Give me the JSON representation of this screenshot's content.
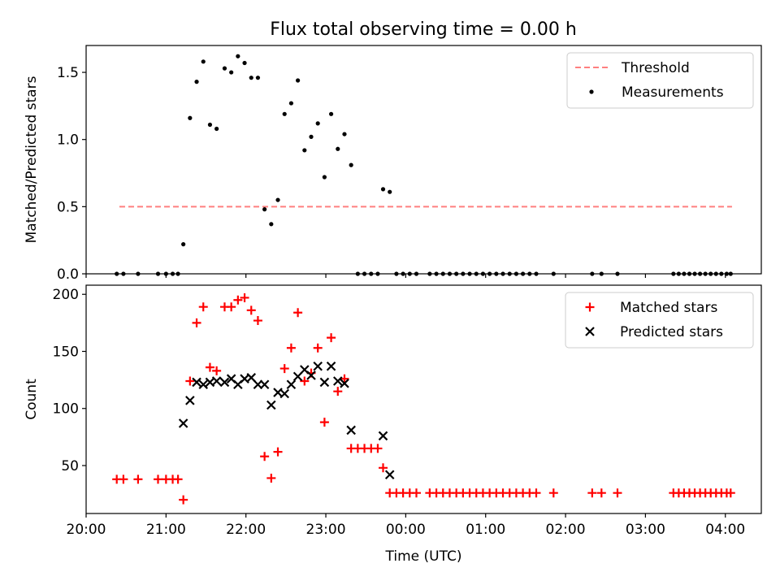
{
  "figure": {
    "title": "Flux total observing time = 0.00 h"
  },
  "chart_data": [
    {
      "type": "scatter",
      "title": "Flux total observing time = 0.00 h",
      "xlabel": "",
      "ylabel": "Matched/Predicted stars",
      "xlim": [
        "20:00",
        "04:27"
      ],
      "ylim": [
        0,
        1.7
      ],
      "yticks": [
        0.0,
        0.5,
        1.0,
        1.5
      ],
      "ytick_labels": [
        "0.0",
        "0.5",
        "1.0",
        "1.5"
      ],
      "grid": false,
      "legend_position": "top-right",
      "threshold": {
        "name": "Threshold",
        "value": 0.5,
        "x_range": [
          "20:25",
          "04:05"
        ],
        "color": "#ff7f7f",
        "style": "dashed"
      },
      "series": [
        {
          "name": "Measurements",
          "color": "#000000",
          "marker": "dot",
          "points": [
            [
              "20:23",
              0
            ],
            [
              "20:28",
              0
            ],
            [
              "20:39",
              0
            ],
            [
              "20:54",
              0
            ],
            [
              "21:00",
              0
            ],
            [
              "21:05",
              0
            ],
            [
              "21:09",
              0
            ],
            [
              "21:13",
              0.22
            ],
            [
              "21:18",
              1.16
            ],
            [
              "21:23",
              1.43
            ],
            [
              "21:28",
              1.58
            ],
            [
              "21:33",
              1.11
            ],
            [
              "21:38",
              1.08
            ],
            [
              "21:44",
              1.53
            ],
            [
              "21:49",
              1.5
            ],
            [
              "21:54",
              1.62
            ],
            [
              "21:59",
              1.57
            ],
            [
              "22:04",
              1.46
            ],
            [
              "22:09",
              1.46
            ],
            [
              "22:14",
              0.48
            ],
            [
              "22:19",
              0.37
            ],
            [
              "22:24",
              0.55
            ],
            [
              "22:29",
              1.19
            ],
            [
              "22:34",
              1.27
            ],
            [
              "22:39",
              1.44
            ],
            [
              "22:44",
              0.92
            ],
            [
              "22:49",
              1.02
            ],
            [
              "22:54",
              1.12
            ],
            [
              "22:59",
              0.72
            ],
            [
              "23:04",
              1.19
            ],
            [
              "23:09",
              0.93
            ],
            [
              "23:14",
              1.04
            ],
            [
              "23:19",
              0.81
            ],
            [
              "23:24",
              0
            ],
            [
              "23:29",
              0
            ],
            [
              "23:34",
              0
            ],
            [
              "23:39",
              0
            ],
            [
              "23:43",
              0.63
            ],
            [
              "23:48",
              0.61
            ],
            [
              "23:53",
              0
            ],
            [
              "23:58",
              0
            ],
            [
              "00:03",
              0
            ],
            [
              "00:08",
              0
            ],
            [
              "00:18",
              0
            ],
            [
              "00:23",
              0
            ],
            [
              "00:28",
              0
            ],
            [
              "00:33",
              0
            ],
            [
              "00:38",
              0
            ],
            [
              "00:43",
              0
            ],
            [
              "00:48",
              0
            ],
            [
              "00:53",
              0
            ],
            [
              "00:58",
              0
            ],
            [
              "01:03",
              0
            ],
            [
              "01:08",
              0
            ],
            [
              "01:13",
              0
            ],
            [
              "01:18",
              0
            ],
            [
              "01:23",
              0
            ],
            [
              "01:28",
              0
            ],
            [
              "01:33",
              0
            ],
            [
              "01:38",
              0
            ],
            [
              "01:51",
              0
            ],
            [
              "02:20",
              0
            ],
            [
              "02:27",
              0
            ],
            [
              "02:39",
              0
            ],
            [
              "03:21",
              0
            ],
            [
              "03:25",
              0
            ],
            [
              "03:29",
              0
            ],
            [
              "03:33",
              0
            ],
            [
              "03:37",
              0
            ],
            [
              "03:41",
              0
            ],
            [
              "03:45",
              0
            ],
            [
              "03:49",
              0
            ],
            [
              "03:53",
              0
            ],
            [
              "03:57",
              0
            ],
            [
              "04:01",
              0
            ],
            [
              "04:04",
              0
            ]
          ]
        }
      ]
    },
    {
      "type": "scatter",
      "title": "",
      "xlabel": "Time (UTC)",
      "ylabel": "Count",
      "xlim": [
        "20:00",
        "04:27"
      ],
      "ylim": [
        8,
        208
      ],
      "yticks": [
        50,
        100,
        150,
        200
      ],
      "ytick_labels": [
        "50",
        "100",
        "150",
        "200"
      ],
      "xticks": [
        "20:00",
        "21:00",
        "22:00",
        "23:00",
        "00:00",
        "01:00",
        "02:00",
        "03:00",
        "04:00"
      ],
      "xtick_labels": [
        "20:00",
        "21:00",
        "22:00",
        "23:00",
        "00:00",
        "01:00",
        "02:00",
        "03:00",
        "04:00"
      ],
      "grid": false,
      "legend_position": "top-right",
      "series": [
        {
          "name": "Matched stars",
          "color": "#ff0000",
          "marker": "plus",
          "points": [
            [
              "20:23",
              38
            ],
            [
              "20:28",
              38
            ],
            [
              "20:39",
              38
            ],
            [
              "20:54",
              38
            ],
            [
              "21:00",
              38
            ],
            [
              "21:05",
              38
            ],
            [
              "21:09",
              38
            ],
            [
              "21:13",
              20
            ],
            [
              "21:18",
              124
            ],
            [
              "21:23",
              175
            ],
            [
              "21:28",
              189
            ],
            [
              "21:33",
              136
            ],
            [
              "21:38",
              133
            ],
            [
              "21:44",
              189
            ],
            [
              "21:49",
              189
            ],
            [
              "21:54",
              195
            ],
            [
              "21:59",
              197
            ],
            [
              "22:04",
              186
            ],
            [
              "22:09",
              177
            ],
            [
              "22:14",
              58
            ],
            [
              "22:19",
              39
            ],
            [
              "22:24",
              62
            ],
            [
              "22:29",
              135
            ],
            [
              "22:34",
              153
            ],
            [
              "22:39",
              184
            ],
            [
              "22:44",
              124
            ],
            [
              "22:49",
              131
            ],
            [
              "22:54",
              153
            ],
            [
              "22:59",
              88
            ],
            [
              "23:04",
              162
            ],
            [
              "23:09",
              115
            ],
            [
              "23:14",
              126
            ],
            [
              "23:19",
              65
            ],
            [
              "23:24",
              65
            ],
            [
              "23:29",
              65
            ],
            [
              "23:34",
              65
            ],
            [
              "23:39",
              65
            ],
            [
              "23:43",
              48
            ],
            [
              "23:48",
              26
            ],
            [
              "23:53",
              26
            ],
            [
              "23:58",
              26
            ],
            [
              "00:03",
              26
            ],
            [
              "00:08",
              26
            ],
            [
              "00:18",
              26
            ],
            [
              "00:23",
              26
            ],
            [
              "00:28",
              26
            ],
            [
              "00:33",
              26
            ],
            [
              "00:38",
              26
            ],
            [
              "00:43",
              26
            ],
            [
              "00:48",
              26
            ],
            [
              "00:53",
              26
            ],
            [
              "00:58",
              26
            ],
            [
              "01:03",
              26
            ],
            [
              "01:08",
              26
            ],
            [
              "01:13",
              26
            ],
            [
              "01:18",
              26
            ],
            [
              "01:23",
              26
            ],
            [
              "01:28",
              26
            ],
            [
              "01:33",
              26
            ],
            [
              "01:38",
              26
            ],
            [
              "01:51",
              26
            ],
            [
              "02:20",
              26
            ],
            [
              "02:27",
              26
            ],
            [
              "02:39",
              26
            ],
            [
              "03:21",
              26
            ],
            [
              "03:25",
              26
            ],
            [
              "03:29",
              26
            ],
            [
              "03:33",
              26
            ],
            [
              "03:37",
              26
            ],
            [
              "03:41",
              26
            ],
            [
              "03:45",
              26
            ],
            [
              "03:49",
              26
            ],
            [
              "03:53",
              26
            ],
            [
              "03:57",
              26
            ],
            [
              "04:01",
              26
            ],
            [
              "04:04",
              26
            ]
          ]
        },
        {
          "name": "Predicted stars",
          "color": "#000000",
          "marker": "x",
          "points": [
            [
              "21:13",
              87
            ],
            [
              "21:18",
              107
            ],
            [
              "21:23",
              123
            ],
            [
              "21:28",
              121
            ],
            [
              "21:33",
              123
            ],
            [
              "21:38",
              124
            ],
            [
              "21:44",
              123
            ],
            [
              "21:49",
              126
            ],
            [
              "21:54",
              121
            ],
            [
              "21:59",
              126
            ],
            [
              "22:04",
              127
            ],
            [
              "22:09",
              121
            ],
            [
              "22:14",
              121
            ],
            [
              "22:19",
              103
            ],
            [
              "22:24",
              114
            ],
            [
              "22:29",
              113
            ],
            [
              "22:34",
              121
            ],
            [
              "22:39",
              128
            ],
            [
              "22:44",
              134
            ],
            [
              "22:49",
              129
            ],
            [
              "22:54",
              137
            ],
            [
              "22:59",
              123
            ],
            [
              "23:04",
              137
            ],
            [
              "23:09",
              124
            ],
            [
              "23:14",
              122
            ],
            [
              "23:19",
              81
            ],
            [
              "23:43",
              76
            ],
            [
              "23:48",
              42
            ]
          ]
        }
      ]
    }
  ]
}
